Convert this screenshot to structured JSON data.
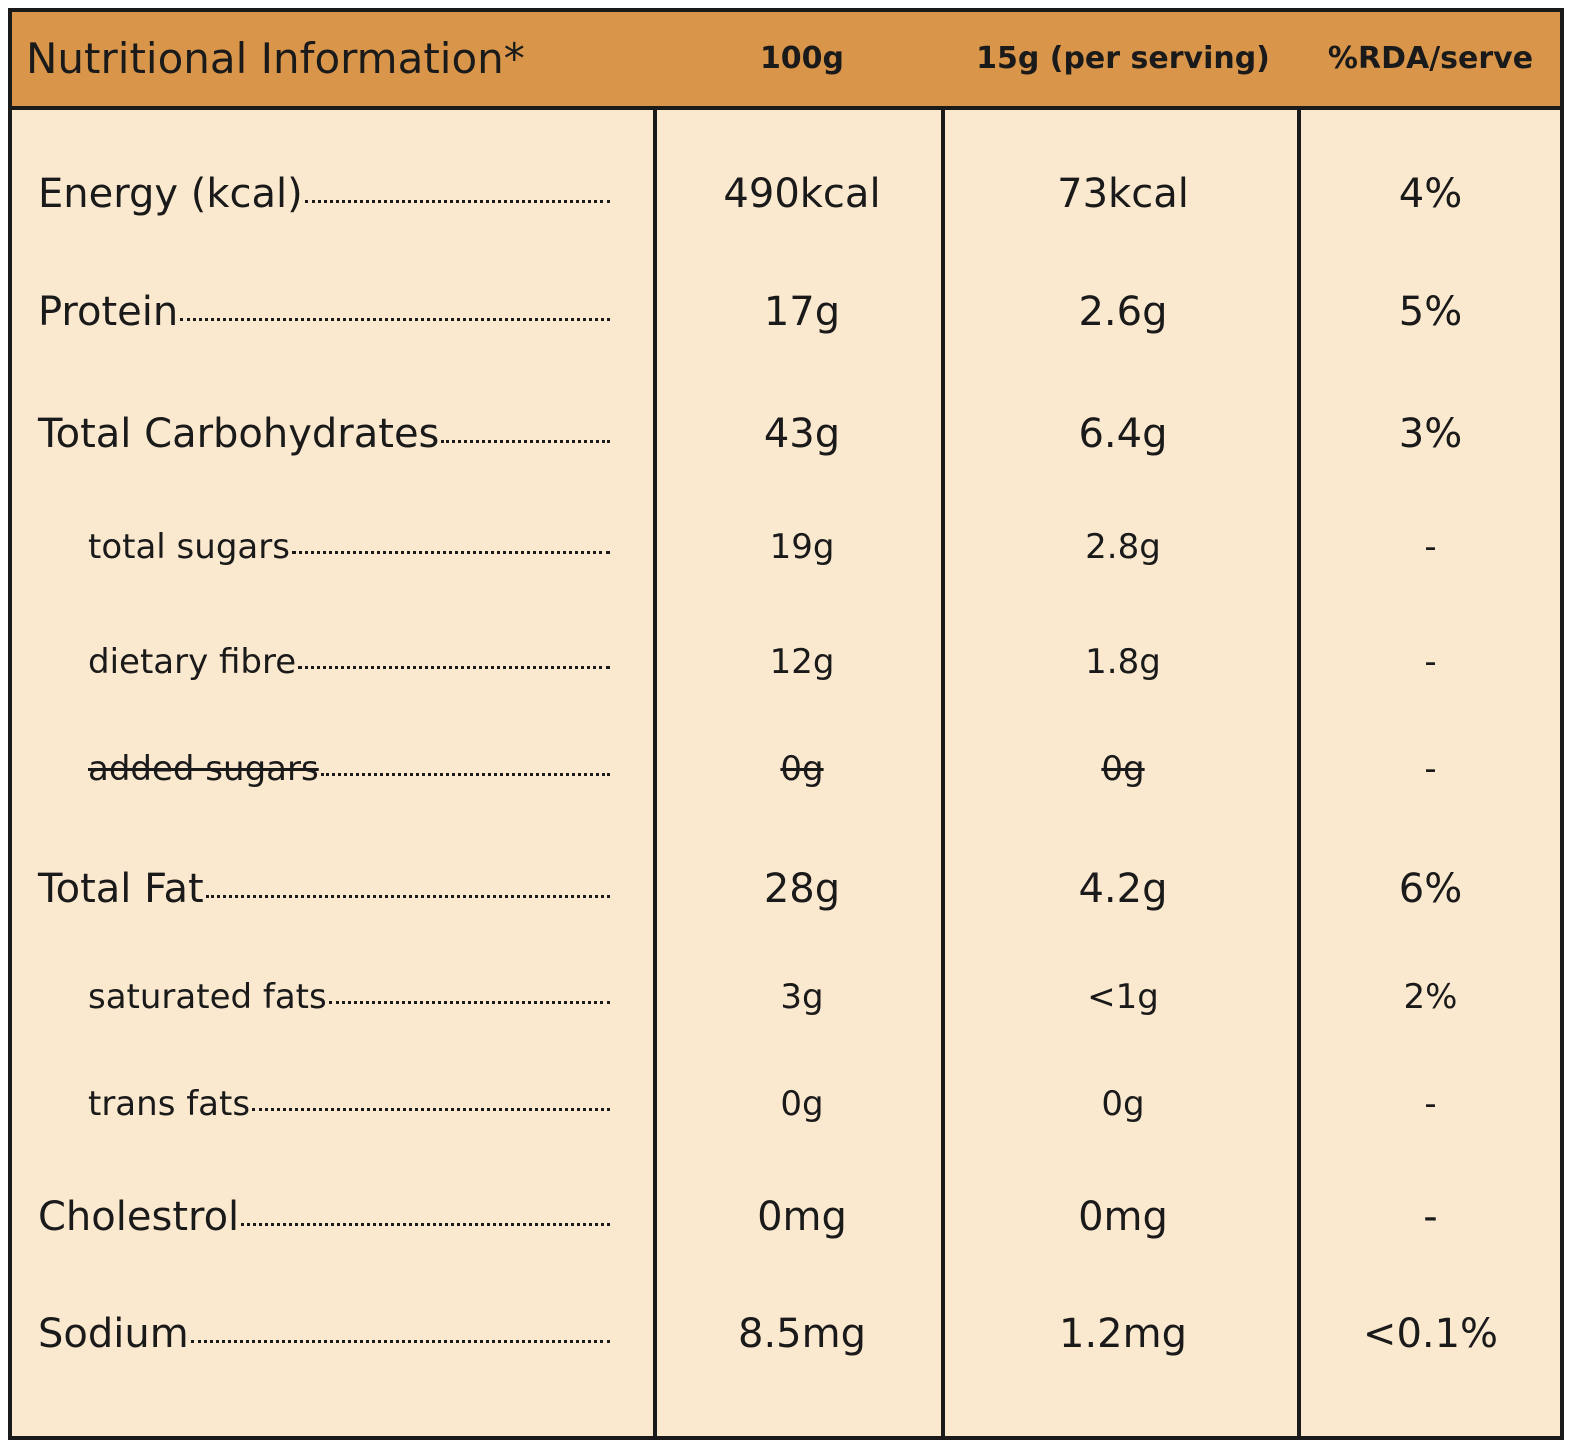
{
  "table": {
    "header": [
      "Nutritional Information*",
      "100g",
      "15g (per serving)",
      "%RDA/serve"
    ],
    "rows": [
      [
        "Energy (kcal)",
        "490kcal",
        "73kcal",
        "4%"
      ],
      [
        "Protein",
        "17g",
        "2.6g",
        "5%"
      ],
      [
        "Total Carbohydrates",
        "43g",
        "6.4g",
        "3%"
      ],
      [
        "total sugars",
        "19g",
        "2.8g",
        "-"
      ],
      [
        "dietary fibre",
        "12g",
        "1.8g",
        "-"
      ],
      [
        "added sugars",
        "0g",
        "0g",
        "-"
      ],
      [
        "Total Fat",
        "28g",
        "4.2g",
        "6%"
      ],
      [
        "saturated fats",
        "3g",
        "<1g",
        "2%"
      ],
      [
        "trans fats",
        "0g",
        "0g",
        "-"
      ],
      [
        "Cholestrol",
        "0mg",
        "0mg",
        "-"
      ],
      [
        "Sodium",
        "8.5mg",
        "1.2mg",
        "<0.1%"
      ]
    ]
  }
}
